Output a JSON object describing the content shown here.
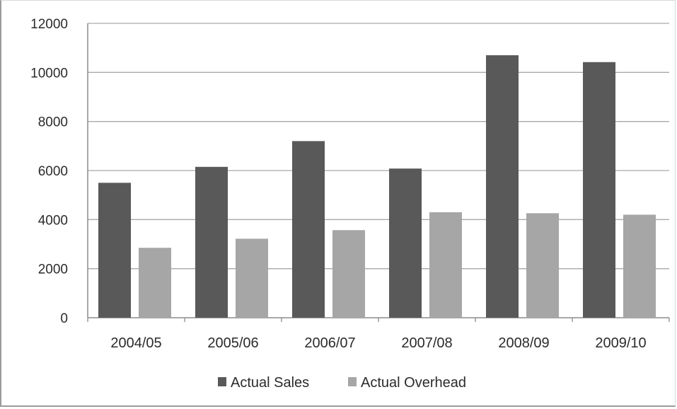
{
  "chart_data": {
    "type": "bar",
    "title": "",
    "xlabel": "",
    "ylabel": "",
    "categories": [
      "2004/05",
      "2005/06",
      "2006/07",
      "2007/08",
      "2008/09",
      "2009/10"
    ],
    "series": [
      {
        "name": "Actual Sales",
        "color": "#595959",
        "values": [
          5500,
          6150,
          7200,
          6080,
          10700,
          10420
        ]
      },
      {
        "name": "Actual Overhead",
        "color": "#a6a6a6",
        "values": [
          2850,
          3220,
          3570,
          4300,
          4260,
          4200
        ]
      }
    ],
    "ylim": [
      0,
      12000
    ],
    "yticks": [
      0,
      2000,
      4000,
      6000,
      8000,
      10000,
      12000
    ],
    "grid": true,
    "legend_position": "bottom"
  }
}
